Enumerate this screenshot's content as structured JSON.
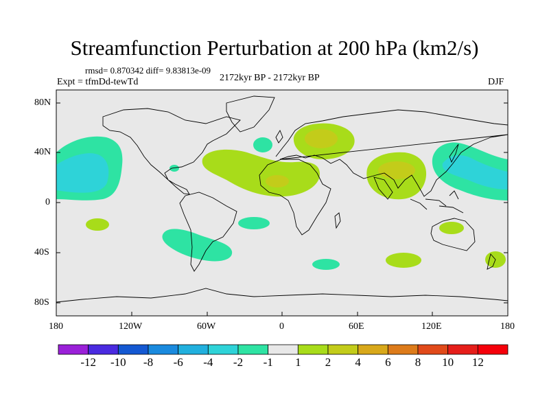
{
  "title": "Streamfunction Perturbation at 200 hPa (km2/s)",
  "stats": "rmsd= 0.870342 diff= 9.83813e-09",
  "experiment": "Expt = tfmDd-tewTd",
  "period": "2172kyr BP - 2172kyr BP",
  "season": "DJF",
  "lat_ticks": [
    "80N",
    "40N",
    "0",
    "40S",
    "80S"
  ],
  "lon_ticks": [
    "180",
    "120W",
    "60W",
    "0",
    "60E",
    "120E",
    "180"
  ],
  "colorbar": {
    "labels": [
      "-12",
      "-10",
      "-8",
      "-6",
      "-4",
      "-2",
      "-1",
      "1",
      "2",
      "4",
      "6",
      "8",
      "10",
      "12"
    ],
    "colors": [
      "#9a20d8",
      "#4a2ae0",
      "#1458d2",
      "#1a8ade",
      "#21b0de",
      "#2ed3d8",
      "#2ee3a3",
      "#e8e8e8",
      "#a8dc1a",
      "#c3cc1a",
      "#d8a81a",
      "#dd7b1a",
      "#e14a1a",
      "#e61e1a",
      "#f5000a"
    ]
  },
  "regions": [
    {
      "name": "north-pacific-positive-anomaly",
      "level": "-1",
      "color": "#2ee3a3"
    },
    {
      "name": "north-pacific-core-anomaly",
      "level": "-2",
      "color": "#2ed3d8"
    },
    {
      "name": "east-asia-pacific-anomaly",
      "level": "-1",
      "color": "#2ee3a3"
    },
    {
      "name": "europe-anomaly",
      "level": "2",
      "color": "#a8dc1a"
    },
    {
      "name": "atlantic-africa-anomaly",
      "level": "2",
      "color": "#a8dc1a"
    },
    {
      "name": "south-asia-anomaly",
      "level": "2",
      "color": "#a8dc1a"
    },
    {
      "name": "south-america-anomaly",
      "level": "-1",
      "color": "#2ee3a3"
    }
  ]
}
